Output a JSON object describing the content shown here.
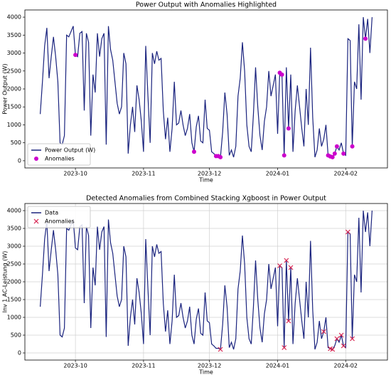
{
  "chart_data": [
    {
      "type": "line",
      "title": "Power Output with Anomalies Highlighted",
      "xlabel": "Time",
      "ylabel": "Power Output (W)",
      "xlim": [
        "2023-09-08",
        "2024-02-20"
      ],
      "ylim": [
        -200,
        4200
      ],
      "xticks": [
        {
          "value": "2023-10-01",
          "label": "2023-10"
        },
        {
          "value": "2023-11-01",
          "label": "2023-11"
        },
        {
          "value": "2023-12-01",
          "label": "2023-12"
        },
        {
          "value": "2024-01-01",
          "label": "2024-01"
        },
        {
          "value": "2024-02-01",
          "label": "2024-02"
        }
      ],
      "yticks": [
        0,
        500,
        1000,
        1500,
        2000,
        2500,
        3000,
        3500,
        4000
      ],
      "grid": false,
      "legend": "lower left",
      "series": [
        {
          "name": "Power Output (W)",
          "color": "#1a237e",
          "x": [
            "2023-09-15",
            "2023-09-16",
            "2023-09-17",
            "2023-09-18",
            "2023-09-19",
            "2023-09-20",
            "2023-09-21",
            "2023-09-22",
            "2023-09-23",
            "2023-09-24",
            "2023-09-25",
            "2023-09-26",
            "2023-09-27",
            "2023-09-28",
            "2023-09-29",
            "2023-09-30",
            "2023-10-01",
            "2023-10-02",
            "2023-10-03",
            "2023-10-04",
            "2023-10-05",
            "2023-10-06",
            "2023-10-07",
            "2023-10-08",
            "2023-10-09",
            "2023-10-10",
            "2023-10-11",
            "2023-10-12",
            "2023-10-13",
            "2023-10-14",
            "2023-10-15",
            "2023-10-16",
            "2023-10-17",
            "2023-10-18",
            "2023-10-19",
            "2023-10-20",
            "2023-10-21",
            "2023-10-22",
            "2023-10-23",
            "2023-10-24",
            "2023-10-25",
            "2023-10-26",
            "2023-10-27",
            "2023-10-28",
            "2023-10-29",
            "2023-10-30",
            "2023-10-31",
            "2023-11-01",
            "2023-11-02",
            "2023-11-03",
            "2023-11-04",
            "2023-11-05",
            "2023-11-06",
            "2023-11-07",
            "2023-11-08",
            "2023-11-09",
            "2023-11-10",
            "2023-11-11",
            "2023-11-12",
            "2023-11-13",
            "2023-11-14",
            "2023-11-15",
            "2023-11-16",
            "2023-11-17",
            "2023-11-18",
            "2023-11-19",
            "2023-11-20",
            "2023-11-21",
            "2023-11-22",
            "2023-11-23",
            "2023-11-24",
            "2023-11-25",
            "2023-11-26",
            "2023-11-27",
            "2023-11-28",
            "2023-11-29",
            "2023-11-30",
            "2023-12-01",
            "2023-12-02",
            "2023-12-03",
            "2023-12-04",
            "2023-12-05",
            "2023-12-06",
            "2023-12-07",
            "2023-12-08",
            "2023-12-09",
            "2023-12-10",
            "2023-12-11",
            "2023-12-12",
            "2023-12-13",
            "2023-12-14",
            "2023-12-15",
            "2023-12-16",
            "2023-12-17",
            "2023-12-18",
            "2023-12-19",
            "2023-12-20",
            "2023-12-21",
            "2023-12-22",
            "2023-12-23",
            "2023-12-24",
            "2023-12-25",
            "2023-12-26",
            "2023-12-27",
            "2023-12-28",
            "2023-12-29",
            "2023-12-30",
            "2023-12-31",
            "2024-01-01",
            "2024-01-02",
            "2024-01-03",
            "2024-01-04",
            "2024-01-05",
            "2024-01-06",
            "2024-01-07",
            "2024-01-08",
            "2024-01-09",
            "2024-01-10",
            "2024-01-11",
            "2024-01-12",
            "2024-01-13",
            "2024-01-14",
            "2024-01-15",
            "2024-01-16",
            "2024-01-17",
            "2024-01-18",
            "2024-01-19",
            "2024-01-20",
            "2024-01-21",
            "2024-01-22",
            "2024-01-23",
            "2024-01-24",
            "2024-01-25",
            "2024-01-26",
            "2024-01-27",
            "2024-01-28",
            "2024-01-29",
            "2024-01-30",
            "2024-01-31",
            "2024-02-01",
            "2024-02-02",
            "2024-02-03",
            "2024-02-04",
            "2024-02-05",
            "2024-02-06",
            "2024-02-07",
            "2024-02-08",
            "2024-02-09",
            "2024-02-10",
            "2024-02-11",
            "2024-02-12",
            "2024-02-13"
          ],
          "values": [
            1300,
            2200,
            3200,
            3700,
            2300,
            2900,
            3450,
            2900,
            2200,
            500,
            450,
            700,
            3500,
            3450,
            3600,
            3750,
            2950,
            2900,
            3550,
            3600,
            1400,
            3550,
            3300,
            700,
            2400,
            1900,
            3550,
            2900,
            3400,
            3550,
            450,
            3750,
            3100,
            2800,
            2200,
            1600,
            1300,
            1500,
            3000,
            2700,
            200,
            1000,
            1500,
            800,
            2100,
            1700,
            1100,
            250,
            3200,
            1800,
            500,
            3000,
            2700,
            3050,
            2800,
            2850,
            1400,
            600,
            1200,
            250,
            900,
            2200,
            1000,
            1050,
            1400,
            1000,
            700,
            900,
            1300,
            500,
            250,
            950,
            1250,
            550,
            500,
            1700,
            900,
            850,
            250,
            200,
            130,
            130,
            100,
            800,
            1900,
            1300,
            150,
            300,
            100,
            400,
            1800,
            2300,
            3300,
            2500,
            1000,
            400,
            250,
            1300,
            2600,
            1500,
            700,
            300,
            1100,
            1500,
            2500,
            1800,
            2100,
            2400,
            750,
            2450,
            2400,
            150,
            2600,
            900,
            2400,
            250,
            1400,
            2100,
            1500,
            900,
            400,
            2000,
            1000,
            3150,
            1200,
            100,
            300,
            900,
            400,
            600,
            1000,
            150,
            120,
            100,
            200,
            400,
            300,
            500,
            200,
            150,
            3400,
            3350,
            400,
            2200,
            2000,
            3800,
            1700,
            4000,
            3400,
            3950,
            3000,
            4000
          ]
        },
        {
          "name": "Anomalies",
          "color": "#cc00cc",
          "marker": "o",
          "x": [
            "2023-10-01",
            "2023-11-24",
            "2023-12-04",
            "2023-12-05",
            "2023-12-06",
            "2024-01-02",
            "2024-01-03",
            "2024-01-04",
            "2024-01-06",
            "2024-01-24",
            "2024-01-25",
            "2024-01-26",
            "2024-01-27",
            "2024-01-28",
            "2024-01-31",
            "2024-02-04",
            "2024-02-10"
          ],
          "values": [
            2950,
            250,
            130,
            130,
            100,
            2450,
            2400,
            150,
            900,
            150,
            120,
            100,
            200,
            400,
            200,
            400,
            3400
          ]
        }
      ]
    },
    {
      "type": "line",
      "title": "Detected Anomalies from Combined Stacking Xgboost in Power Output",
      "xlabel": "Time",
      "ylabel": "Inv 1 AC-Leistung (W)",
      "xlim": [
        "2023-09-08",
        "2024-02-20"
      ],
      "ylim": [
        -200,
        4200
      ],
      "xticks": [
        {
          "value": "2023-10-01",
          "label": "2023-10"
        },
        {
          "value": "2023-11-01",
          "label": "2023-11"
        },
        {
          "value": "2023-12-01",
          "label": "2023-12"
        },
        {
          "value": "2024-01-01",
          "label": "2024-01"
        },
        {
          "value": "2024-02-01",
          "label": "2024-02"
        }
      ],
      "yticks": [
        0,
        500,
        1000,
        1500,
        2000,
        2500,
        3000,
        3500,
        4000
      ],
      "grid": true,
      "legend": "upper left",
      "series": [
        {
          "name": "Data",
          "color": "#1a237e",
          "x": [
            "2023-09-15",
            "2023-09-16",
            "2023-09-17",
            "2023-09-18",
            "2023-09-19",
            "2023-09-20",
            "2023-09-21",
            "2023-09-22",
            "2023-09-23",
            "2023-09-24",
            "2023-09-25",
            "2023-09-26",
            "2023-09-27",
            "2023-09-28",
            "2023-09-29",
            "2023-09-30",
            "2023-10-01",
            "2023-10-02",
            "2023-10-03",
            "2023-10-04",
            "2023-10-05",
            "2023-10-06",
            "2023-10-07",
            "2023-10-08",
            "2023-10-09",
            "2023-10-10",
            "2023-10-11",
            "2023-10-12",
            "2023-10-13",
            "2023-10-14",
            "2023-10-15",
            "2023-10-16",
            "2023-10-17",
            "2023-10-18",
            "2023-10-19",
            "2023-10-20",
            "2023-10-21",
            "2023-10-22",
            "2023-10-23",
            "2023-10-24",
            "2023-10-25",
            "2023-10-26",
            "2023-10-27",
            "2023-10-28",
            "2023-10-29",
            "2023-10-30",
            "2023-10-31",
            "2023-11-01",
            "2023-11-02",
            "2023-11-03",
            "2023-11-04",
            "2023-11-05",
            "2023-11-06",
            "2023-11-07",
            "2023-11-08",
            "2023-11-09",
            "2023-11-10",
            "2023-11-11",
            "2023-11-12",
            "2023-11-13",
            "2023-11-14",
            "2023-11-15",
            "2023-11-16",
            "2023-11-17",
            "2023-11-18",
            "2023-11-19",
            "2023-11-20",
            "2023-11-21",
            "2023-11-22",
            "2023-11-23",
            "2023-11-24",
            "2023-11-25",
            "2023-11-26",
            "2023-11-27",
            "2023-11-28",
            "2023-11-29",
            "2023-11-30",
            "2023-12-01",
            "2023-12-02",
            "2023-12-03",
            "2023-12-04",
            "2023-12-05",
            "2023-12-06",
            "2023-12-07",
            "2023-12-08",
            "2023-12-09",
            "2023-12-10",
            "2023-12-11",
            "2023-12-12",
            "2023-12-13",
            "2023-12-14",
            "2023-12-15",
            "2023-12-16",
            "2023-12-17",
            "2023-12-18",
            "2023-12-19",
            "2023-12-20",
            "2023-12-21",
            "2023-12-22",
            "2023-12-23",
            "2023-12-24",
            "2023-12-25",
            "2023-12-26",
            "2023-12-27",
            "2023-12-28",
            "2023-12-29",
            "2023-12-30",
            "2023-12-31",
            "2024-01-01",
            "2024-01-02",
            "2024-01-03",
            "2024-01-04",
            "2024-01-05",
            "2024-01-06",
            "2024-01-07",
            "2024-01-08",
            "2024-01-09",
            "2024-01-10",
            "2024-01-11",
            "2024-01-12",
            "2024-01-13",
            "2024-01-14",
            "2024-01-15",
            "2024-01-16",
            "2024-01-17",
            "2024-01-18",
            "2024-01-19",
            "2024-01-20",
            "2024-01-21",
            "2024-01-22",
            "2024-01-23",
            "2024-01-24",
            "2024-01-25",
            "2024-01-26",
            "2024-01-27",
            "2024-01-28",
            "2024-01-29",
            "2024-01-30",
            "2024-01-31",
            "2024-02-01",
            "2024-02-02",
            "2024-02-03",
            "2024-02-04",
            "2024-02-05",
            "2024-02-06",
            "2024-02-07",
            "2024-02-08",
            "2024-02-09",
            "2024-02-10",
            "2024-02-11",
            "2024-02-12",
            "2024-02-13"
          ],
          "values": [
            1300,
            2200,
            3200,
            3700,
            2300,
            2900,
            3450,
            2900,
            2200,
            500,
            450,
            700,
            3500,
            3450,
            3600,
            3750,
            2950,
            2900,
            3550,
            3600,
            1400,
            3550,
            3300,
            700,
            2400,
            1900,
            3550,
            2900,
            3400,
            3550,
            450,
            3750,
            3100,
            2800,
            2200,
            1600,
            1300,
            1500,
            3000,
            2700,
            200,
            1000,
            1500,
            800,
            2100,
            1700,
            1100,
            250,
            3200,
            1800,
            500,
            3000,
            2700,
            3050,
            2800,
            2850,
            1400,
            600,
            1200,
            250,
            900,
            2200,
            1000,
            1050,
            1400,
            1000,
            700,
            900,
            1300,
            500,
            250,
            950,
            1250,
            550,
            500,
            1700,
            900,
            850,
            250,
            200,
            130,
            130,
            100,
            800,
            1900,
            1300,
            150,
            300,
            100,
            400,
            1800,
            2300,
            3300,
            2500,
            1000,
            400,
            250,
            1300,
            2600,
            1500,
            700,
            300,
            1100,
            1500,
            2500,
            1800,
            2100,
            2400,
            750,
            2450,
            2400,
            150,
            2600,
            900,
            2400,
            250,
            1400,
            2100,
            1500,
            900,
            400,
            2000,
            1000,
            3150,
            1200,
            100,
            300,
            900,
            400,
            600,
            1000,
            150,
            120,
            100,
            200,
            400,
            300,
            500,
            200,
            150,
            3400,
            3350,
            400,
            2200,
            2000,
            3800,
            1700,
            4000,
            3400,
            3950,
            3000,
            4000
          ]
        },
        {
          "name": "Anomalies",
          "color": "#d6204e",
          "marker": "x",
          "x": [
            "2023-12-06",
            "2024-01-02",
            "2024-01-04",
            "2024-01-05",
            "2024-01-06",
            "2024-01-07",
            "2024-01-22",
            "2024-01-25",
            "2024-01-26",
            "2024-01-28",
            "2024-01-30",
            "2024-01-31",
            "2024-02-02",
            "2024-02-04"
          ],
          "values": [
            100,
            2450,
            150,
            2600,
            900,
            2400,
            600,
            120,
            100,
            400,
            500,
            200,
            3400,
            400
          ]
        }
      ]
    }
  ]
}
